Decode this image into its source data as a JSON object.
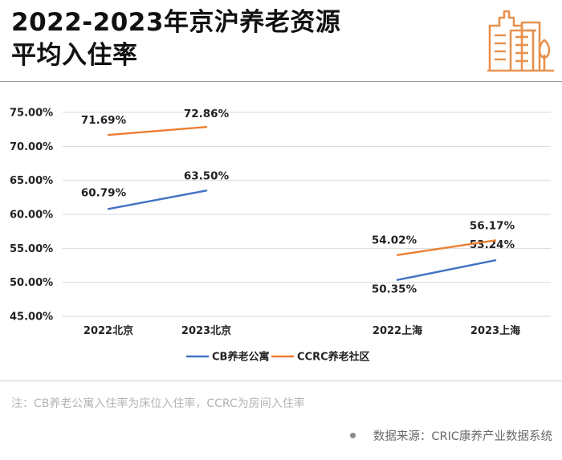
{
  "header": {
    "title_line1": "2022-2023年京沪养老资源",
    "title_line2": "平均入住率"
  },
  "colors": {
    "cb": "#4472c4",
    "ccrc": "#ed7d31",
    "logo": "#e8914e"
  },
  "icons": {
    "logo": "building-icon"
  },
  "chart_data": {
    "type": "line",
    "categories": [
      "2022北京",
      "2023北京",
      "2022上海",
      "2023上海"
    ],
    "y_ticks": [
      "75.00%",
      "70.00%",
      "65.00%",
      "60.00%",
      "55.00%",
      "50.00%",
      "45.00%"
    ],
    "ylim": [
      45,
      75
    ],
    "grid": true,
    "legend_position": "bottom",
    "series": [
      {
        "name": "CB养老公寓",
        "segments": [
          {
            "categories": [
              "2022北京",
              "2023北京"
            ],
            "values": [
              60.79,
              63.5
            ],
            "labels": [
              "60.79%",
              "63.50%"
            ]
          },
          {
            "categories": [
              "2022上海",
              "2023上海"
            ],
            "values": [
              50.35,
              53.24
            ],
            "labels": [
              "50.35%",
              "53.24%"
            ]
          }
        ]
      },
      {
        "name": "CCRC养老社区",
        "segments": [
          {
            "categories": [
              "2022北京",
              "2023北京"
            ],
            "values": [
              71.69,
              72.86
            ],
            "labels": [
              "71.69%",
              "72.86%"
            ]
          },
          {
            "categories": [
              "2022上海",
              "2023上海"
            ],
            "values": [
              54.02,
              56.17
            ],
            "labels": [
              "54.02%",
              "56.17%"
            ]
          }
        ]
      }
    ]
  },
  "footer": {
    "note": "注：CB养老公寓入住率为床位入住率，CCRC为房间入住率",
    "source": "数据来源：CRIC康养产业数据系统"
  }
}
